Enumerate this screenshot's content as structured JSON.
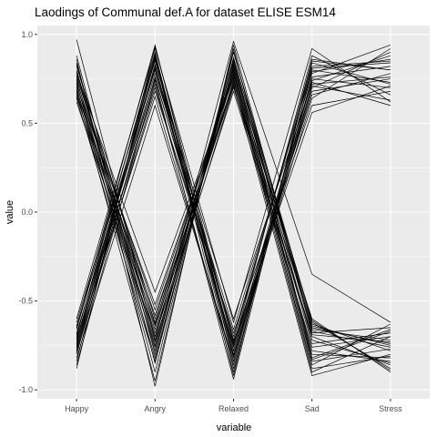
{
  "chart_data": {
    "type": "line",
    "title": "Laodings of Communal def.A for dataset ELISE ESM14",
    "xlabel": "variable",
    "ylabel": "value",
    "categories": [
      "Happy",
      "Angry",
      "Relaxed",
      "Sad",
      "Stress"
    ],
    "ylim": [
      -1.05,
      1.05
    ],
    "yticks": [
      -1.0,
      -0.5,
      0.0,
      0.5,
      1.0
    ],
    "ytick_labels": [
      "-1.0",
      "-0.5",
      "0.0",
      "0.5",
      "1.0"
    ],
    "grid": true,
    "panel_background": "#ebebeb",
    "grid_color": "#ffffff",
    "line_color": "#000000",
    "series": [
      {
        "values": [
          0.97,
          -0.72,
          0.96,
          -0.35,
          -0.62
        ]
      },
      {
        "values": [
          0.88,
          -0.8,
          0.9,
          -0.62,
          -0.88
        ]
      },
      {
        "values": [
          0.84,
          -0.85,
          0.87,
          -0.68,
          -0.65
        ]
      },
      {
        "values": [
          0.82,
          -0.6,
          0.8,
          -0.8,
          -0.82
        ]
      },
      {
        "values": [
          0.8,
          -0.7,
          0.82,
          -0.65,
          -0.74
        ]
      },
      {
        "values": [
          0.79,
          -0.75,
          0.85,
          -0.72,
          -0.85
        ]
      },
      {
        "values": [
          0.78,
          -0.45,
          0.75,
          -0.9,
          -0.7
        ]
      },
      {
        "values": [
          0.77,
          -0.66,
          0.79,
          -0.84,
          -0.77
        ]
      },
      {
        "values": [
          0.76,
          -0.55,
          0.77,
          -0.6,
          -0.9
        ]
      },
      {
        "values": [
          0.75,
          -0.78,
          0.81,
          -0.74,
          -0.68
        ]
      },
      {
        "values": [
          0.74,
          -0.62,
          0.72,
          -0.92,
          -0.8
        ]
      },
      {
        "values": [
          0.73,
          -0.9,
          0.9,
          -0.66,
          -0.72
        ]
      },
      {
        "values": [
          0.72,
          -0.73,
          0.7,
          -0.7,
          -0.86
        ]
      },
      {
        "values": [
          0.71,
          -0.52,
          0.76,
          -0.86,
          -0.63
        ]
      },
      {
        "values": [
          0.7,
          -0.82,
          0.83,
          -0.63,
          -0.78
        ]
      },
      {
        "values": [
          0.69,
          -0.68,
          0.74,
          -0.78,
          -0.84
        ]
      },
      {
        "values": [
          0.68,
          -0.95,
          0.92,
          -0.82,
          -0.66
        ]
      },
      {
        "values": [
          0.67,
          -0.58,
          0.73,
          -0.64,
          -0.75
        ]
      },
      {
        "values": [
          0.66,
          -0.76,
          0.78,
          -0.88,
          -0.81
        ]
      },
      {
        "values": [
          0.65,
          -0.64,
          0.71,
          -0.69,
          -0.73
        ]
      },
      {
        "values": [
          0.64,
          -0.84,
          0.86,
          -0.61,
          -0.89
        ]
      },
      {
        "values": [
          0.62,
          -0.7,
          0.68,
          -0.76,
          -0.7
        ]
      },
      {
        "values": [
          0.86,
          -0.98,
          0.94,
          -0.67,
          -0.76
        ]
      },
      {
        "values": [
          0.83,
          -0.63,
          0.84,
          -0.83,
          -0.67
        ]
      },
      {
        "values": [
          -0.6,
          0.92,
          -0.62,
          0.92,
          0.62
        ]
      },
      {
        "values": [
          -0.62,
          0.85,
          -0.72,
          0.85,
          0.8
        ]
      },
      {
        "values": [
          -0.64,
          0.8,
          -0.78,
          0.78,
          0.94
        ]
      },
      {
        "values": [
          -0.66,
          0.88,
          -0.84,
          0.75,
          0.7
        ]
      },
      {
        "values": [
          -0.68,
          0.75,
          -0.7,
          0.82,
          0.85
        ]
      },
      {
        "values": [
          -0.7,
          0.9,
          -0.88,
          0.72,
          0.76
        ]
      },
      {
        "values": [
          -0.71,
          0.7,
          -0.75,
          0.88,
          0.66
        ]
      },
      {
        "values": [
          -0.72,
          0.83,
          -0.8,
          0.7,
          0.9
        ]
      },
      {
        "values": [
          -0.73,
          0.78,
          -0.66,
          0.8,
          0.73
        ]
      },
      {
        "values": [
          -0.74,
          0.65,
          -0.86,
          0.76,
          0.82
        ]
      },
      {
        "values": [
          -0.75,
          0.86,
          -0.74,
          0.66,
          0.78
        ]
      },
      {
        "values": [
          -0.76,
          0.72,
          -0.9,
          0.84,
          0.72
        ]
      },
      {
        "values": [
          -0.77,
          0.82,
          -0.82,
          0.74,
          0.88
        ]
      },
      {
        "values": [
          -0.78,
          0.68,
          -0.68,
          0.6,
          0.68
        ]
      },
      {
        "values": [
          -0.79,
          0.87,
          -0.92,
          0.86,
          0.8
        ]
      },
      {
        "values": [
          -0.8,
          0.76,
          -0.76,
          0.71,
          0.63
        ]
      },
      {
        "values": [
          -0.82,
          0.6,
          -0.84,
          0.79,
          0.86
        ]
      },
      {
        "values": [
          -0.84,
          0.89,
          -0.78,
          0.68,
          0.75
        ]
      },
      {
        "values": [
          -0.86,
          0.74,
          -0.94,
          0.81,
          0.84
        ]
      },
      {
        "values": [
          -0.88,
          0.93,
          -0.73,
          0.56,
          0.71
        ]
      },
      {
        "values": [
          -0.69,
          0.81,
          -0.6,
          0.73,
          0.6
        ]
      },
      {
        "values": [
          -0.65,
          0.94,
          -0.81,
          0.64,
          0.92
        ]
      }
    ]
  }
}
